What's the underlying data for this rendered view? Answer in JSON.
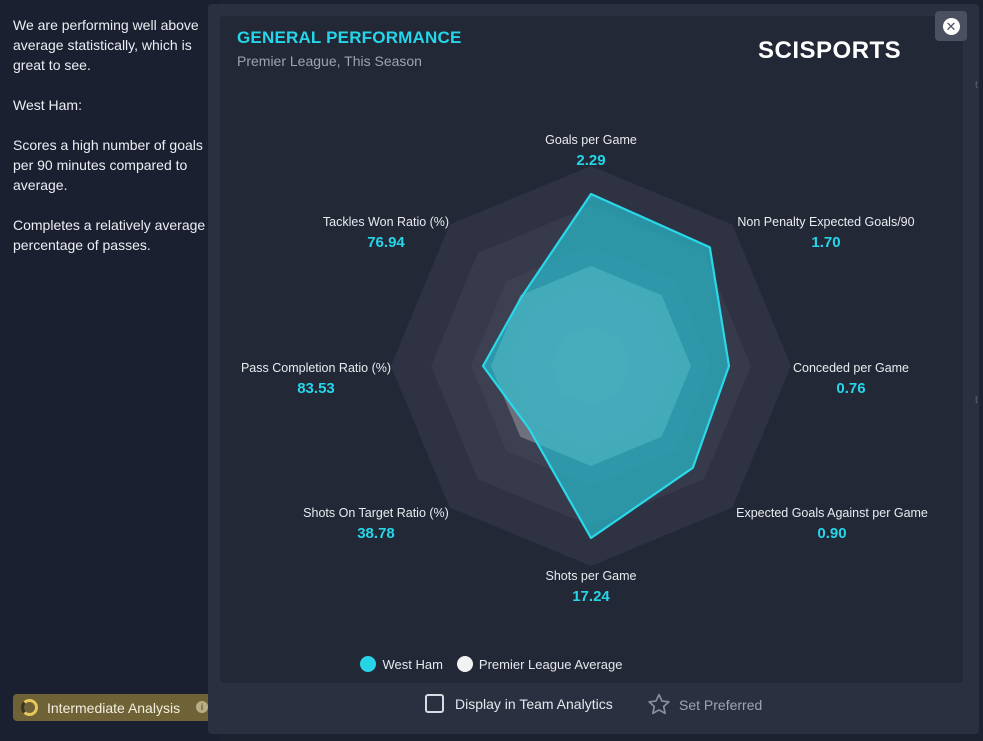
{
  "analysis": {
    "paragraphs": [
      "We are performing well above average statistically, which is great to see.",
      "West Ham:",
      "Scores a high number of goals per 90 minutes compared to average.",
      "Completes a relatively average percentage of passes."
    ],
    "button_label": "Intermediate Analysis",
    "button_info": "i"
  },
  "card": {
    "title": "GENERAL PERFORMANCE",
    "subtitle": "Premier League, This Season",
    "brand": "SCISPORTS",
    "close_glyph": "✕"
  },
  "chart_data": {
    "type": "radar",
    "title": "GENERAL PERFORMANCE",
    "subtitle": "Premier League, This Season",
    "axes": [
      "Goals per Game",
      "Non Penalty Expected Goals/90",
      "Conceded per Game",
      "Expected Goals Against per Game",
      "Shots per Game",
      "Shots On Target Ratio (%)",
      "Pass Completion Ratio (%)",
      "Tackles Won Ratio (%)"
    ],
    "value_labels": [
      "2.29",
      "1.70",
      "0.76",
      "0.90",
      "17.24",
      "38.78",
      "83.53",
      "76.94"
    ],
    "series": [
      {
        "name": "West Ham",
        "color": "#27d3e6",
        "values": [
          0.86,
          0.84,
          0.69,
          0.72,
          0.86,
          0.44,
          0.54,
          0.49
        ]
      },
      {
        "name": "Premier League Average",
        "color": "#f2f2f2",
        "values": [
          0.5,
          0.5,
          0.5,
          0.5,
          0.5,
          0.5,
          0.5,
          0.5
        ]
      }
    ],
    "legend": "bottom"
  },
  "footer": {
    "display_label": "Display in Team Analytics",
    "preferred_label": "Set Preferred"
  },
  "colors": {
    "accent": "#25d6ea",
    "background": "#1d2231",
    "card": "#232836"
  },
  "icons": {
    "close": "close-icon",
    "star": "star-icon",
    "info": "info-icon"
  }
}
